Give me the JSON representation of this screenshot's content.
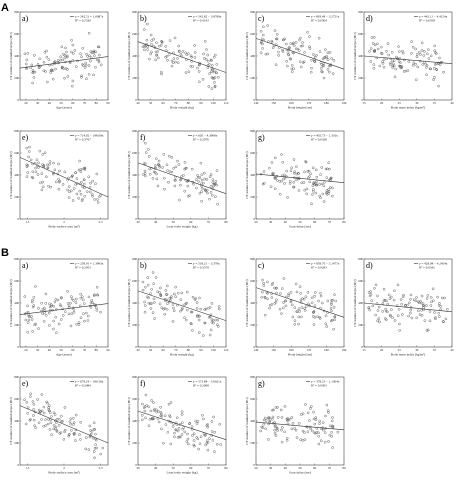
{
  "figure": {
    "sections": [
      {
        "letter": "A"
      },
      {
        "letter": "B"
      }
    ]
  },
  "chart_data": [
    {
      "section": "A",
      "panel": "a)",
      "type": "scatter",
      "ylabel": "CT number of bundled stripe (HU)",
      "xlabel": "Age (years)",
      "legend": [
        "y = 242.51 + 1.6087x",
        "R² = 0.2330"
      ],
      "xlim": [
        15,
        90
      ],
      "ylim": [
        0,
        800
      ],
      "xticks": [
        "20",
        "30",
        "40",
        "50",
        "60",
        "70",
        "80",
        "90"
      ],
      "yticks": [
        "0",
        "200",
        "400",
        "600",
        "800"
      ],
      "trend": [
        [
          15,
          290
        ],
        [
          90,
          395
        ]
      ]
    },
    {
      "section": "A",
      "panel": "b)",
      "type": "scatter",
      "ylabel": "CT number of bundled stripe (HU)",
      "xlabel": "Body weight (kg)",
      "legend": [
        "y = 542.82 − 3.8769x",
        "R² = 0.4143"
      ],
      "xlim": [
        40,
        110
      ],
      "ylim": [
        0,
        800
      ],
      "xticks": [
        "40",
        "50",
        "60",
        "70",
        "80",
        "90",
        "100",
        "110"
      ],
      "yticks": [
        "0",
        "200",
        "400",
        "600",
        "800"
      ],
      "trend": [
        [
          40,
          530
        ],
        [
          110,
          250
        ]
      ]
    },
    {
      "section": "A",
      "panel": "c)",
      "type": "scatter",
      "ylabel": "CT number of bundled stripe (HU)",
      "xlabel": "Body height (cm)",
      "legend": [
        "y = 893.48 − 3.2721x",
        "R² = 0.0304"
      ],
      "xlim": [
        140,
        190
      ],
      "ylim": [
        0,
        800
      ],
      "xticks": [
        "140",
        "150",
        "160",
        "170",
        "180",
        "190"
      ],
      "yticks": [
        "0",
        "200",
        "400",
        "600",
        "800"
      ],
      "trend": [
        [
          140,
          560
        ],
        [
          190,
          280
        ]
      ]
    },
    {
      "section": "A",
      "panel": "d)",
      "type": "scatter",
      "ylabel": "CT number of bundled stripe (HU)",
      "xlabel": "Body mass index (kg/m²)",
      "legend": [
        "y = 442.11 − 4.4124x",
        "R² = 0.0358"
      ],
      "xlim": [
        15,
        40
      ],
      "ylim": [
        0,
        800
      ],
      "xticks": [
        "15",
        "20",
        "25",
        "30",
        "35",
        "40"
      ],
      "yticks": [
        "0",
        "200",
        "400",
        "600",
        "800"
      ],
      "trend": [
        [
          15,
          400
        ],
        [
          40,
          330
        ]
      ]
    },
    {
      "section": "A",
      "panel": "e)",
      "type": "scatter",
      "ylabel": "CT number of bundled stripe (HU)",
      "xlabel": "Body surface area (m²)",
      "legend": [
        "y = 714.02 − 198.08x",
        "R² = 0.3767"
      ],
      "xlim": [
        1.4,
        2.6
      ],
      "ylim": [
        0,
        800
      ],
      "xticks": [
        "1.5",
        "2",
        "2.5"
      ],
      "yticks": [
        "0",
        "200",
        "400",
        "600",
        "800"
      ],
      "trend": [
        [
          1.4,
          560
        ],
        [
          2.6,
          200
        ]
      ]
    },
    {
      "section": "A",
      "panel": "f)",
      "type": "scatter",
      "ylabel": "CT number of bundled stripe (HU)",
      "xlabel": "Lean body weight (kg)",
      "legend": [
        "y = 620 − 4.3969x",
        "R² = 0.2076"
      ],
      "xlim": [
        30,
        80
      ],
      "ylim": [
        0,
        800
      ],
      "xticks": [
        "30",
        "40",
        "50",
        "60",
        "70",
        "80"
      ],
      "yticks": [
        "0",
        "200",
        "400",
        "600",
        "800"
      ],
      "trend": [
        [
          30,
          510
        ],
        [
          80,
          230
        ]
      ]
    },
    {
      "section": "A",
      "panel": "g)",
      "type": "scatter",
      "ylabel": "CT number of bundled stripe (HU)",
      "xlabel": "Scan delay (sec)",
      "legend": [
        "y = 402.73 − 1.316x",
        "R² = 0.0328"
      ],
      "xlim": [
        20,
        80
      ],
      "ylim": [
        0,
        800
      ],
      "xticks": [
        "20",
        "30",
        "40",
        "50",
        "60",
        "70",
        "80"
      ],
      "yticks": [
        "0",
        "200",
        "400",
        "600",
        "800"
      ],
      "trend": [
        [
          20,
          410
        ],
        [
          80,
          330
        ]
      ]
    },
    {
      "section": "B",
      "panel": "a)",
      "type": "scatter",
      "ylabel": "CT number of bundled stripe (HU)",
      "xlabel": "Age (years)",
      "legend": [
        "y = 258.91 + 1.3993x",
        "R² = 0.2953"
      ],
      "xlim": [
        15,
        90
      ],
      "ylim": [
        0,
        800
      ],
      "xticks": [
        "20",
        "30",
        "40",
        "50",
        "60",
        "70",
        "80",
        "90"
      ],
      "yticks": [
        "0",
        "200",
        "400",
        "600",
        "800"
      ],
      "trend": [
        [
          15,
          295
        ],
        [
          90,
          395
        ]
      ]
    },
    {
      "section": "B",
      "panel": "b)",
      "type": "scatter",
      "ylabel": "CT number of bundled stripe (HU)",
      "xlabel": "Body weight (kg)",
      "legend": [
        "y = 518.21 − 3.378x",
        "R² = 0.3579"
      ],
      "xlim": [
        40,
        110
      ],
      "ylim": [
        0,
        800
      ],
      "xticks": [
        "40",
        "50",
        "60",
        "70",
        "80",
        "90",
        "100",
        "110"
      ],
      "yticks": [
        "0",
        "200",
        "400",
        "600",
        "800"
      ],
      "trend": [
        [
          40,
          510
        ],
        [
          110,
          240
        ]
      ]
    },
    {
      "section": "B",
      "panel": "c)",
      "type": "scatter",
      "ylabel": "CT number of bundled stripe (HU)",
      "xlabel": "Body height (cm)",
      "legend": [
        "y = 858.70 − 3.1477x",
        "R² = 0.0283"
      ],
      "xlim": [
        140,
        190
      ],
      "ylim": [
        0,
        800
      ],
      "xticks": [
        "140",
        "150",
        "160",
        "170",
        "180",
        "190"
      ],
      "yticks": [
        "0",
        "200",
        "400",
        "600",
        "800"
      ],
      "trend": [
        [
          140,
          540
        ],
        [
          190,
          270
        ]
      ]
    },
    {
      "section": "B",
      "panel": "d)",
      "type": "scatter",
      "ylabel": "CT number of bundled stripe (HU)",
      "xlabel": "Body mass index (kg/m²)",
      "legend": [
        "y = 428.08 − 4.2454x",
        "R² = 0.0342"
      ],
      "xlim": [
        15,
        40
      ],
      "ylim": [
        0,
        800
      ],
      "xticks": [
        "15",
        "20",
        "25",
        "30",
        "35",
        "40"
      ],
      "yticks": [
        "0",
        "200",
        "400",
        "600",
        "800"
      ],
      "trend": [
        [
          15,
          400
        ],
        [
          40,
          320
        ]
      ]
    },
    {
      "section": "B",
      "panel": "e)",
      "type": "scatter",
      "ylabel": "CT number of bundled stripe (HU)",
      "xlabel": "Body surface area (m²)",
      "legend": [
        "y = 678.24 − 180.58x",
        "R² = 0.3484"
      ],
      "xlim": [
        1.4,
        2.6
      ],
      "ylim": [
        0,
        800
      ],
      "xticks": [
        "1.5",
        "2",
        "2.5"
      ],
      "yticks": [
        "0",
        "200",
        "400",
        "600",
        "800"
      ],
      "trend": [
        [
          1.4,
          540
        ],
        [
          2.6,
          200
        ]
      ]
    },
    {
      "section": "B",
      "panel": "f)",
      "type": "scatter",
      "ylabel": "CT number of bundled stripe (HU)",
      "xlabel": "Lean body weight (kg)",
      "legend": [
        "y = 573.88 − 3.9021x",
        "R² = 0.2008"
      ],
      "xlim": [
        30,
        80
      ],
      "ylim": [
        0,
        800
      ],
      "xticks": [
        "30",
        "40",
        "50",
        "60",
        "70",
        "80"
      ],
      "yticks": [
        "0",
        "200",
        "400",
        "600",
        "800"
      ],
      "trend": [
        [
          30,
          490
        ],
        [
          80,
          230
        ]
      ]
    },
    {
      "section": "B",
      "panel": "g)",
      "type": "scatter",
      "ylabel": "CT number of bundled stripe (HU)",
      "xlabel": "Scan delay (sec)",
      "legend": [
        "y = 378.23 − 1.1304x",
        "R² = 0.0303"
      ],
      "xlim": [
        20,
        80
      ],
      "ylim": [
        0,
        800
      ],
      "xticks": [
        "20",
        "30",
        "40",
        "50",
        "60",
        "70",
        "80"
      ],
      "yticks": [
        "0",
        "200",
        "400",
        "600",
        "800"
      ],
      "trend": [
        [
          20,
          390
        ],
        [
          80,
          320
        ]
      ]
    }
  ]
}
